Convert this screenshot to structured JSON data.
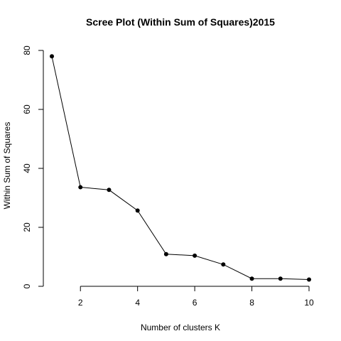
{
  "chart_data": {
    "type": "line",
    "title": "Scree Plot (Within Sum of Squares)2015",
    "xlabel": "Number of clusters K",
    "ylabel": "Within Sum of Squares",
    "x": [
      1,
      2,
      3,
      4,
      5,
      6,
      7,
      8,
      9,
      10
    ],
    "series": [
      {
        "values": [
          78.0,
          33.6,
          32.7,
          25.7,
          10.9,
          10.4,
          7.4,
          2.6,
          2.6,
          2.3
        ]
      }
    ],
    "xlim": [
      1,
      10
    ],
    "ylim": [
      0,
      80
    ],
    "xticks": [
      2,
      4,
      6,
      8,
      10
    ],
    "yticks": [
      0,
      20,
      40,
      60,
      80
    ],
    "grid": false,
    "legend": "none",
    "colors": {
      "line": "#000000",
      "points": "#000000",
      "background": "#ffffff"
    }
  }
}
